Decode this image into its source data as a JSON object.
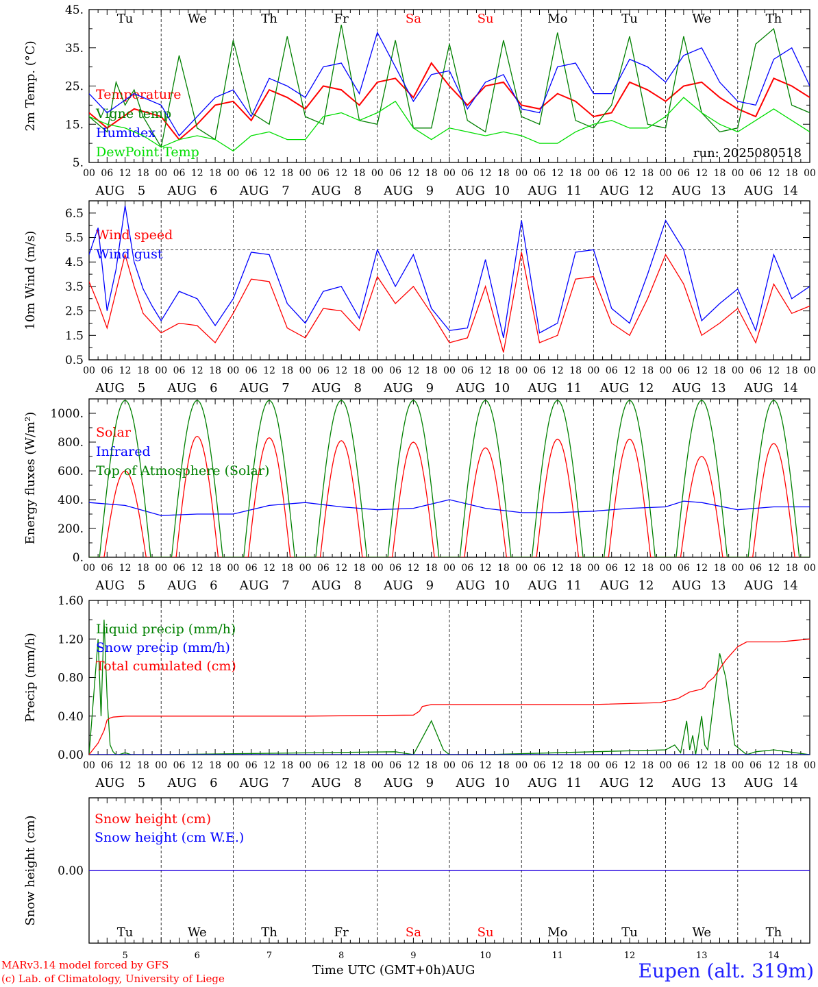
{
  "footer": {
    "credit_line1": "MARv3.14 model forced by GFS",
    "credit_line2": "(c) Lab. of Climatology, University of Liege",
    "x_axis_label": "Time UTC (GMT+0h)AUG",
    "station": "Eupen (alt. 319m)"
  },
  "colors": {
    "red": "#ff0000",
    "green": "#008000",
    "blue": "#0000ff",
    "lightgreen": "#00dd00",
    "weekend": "#ff0000",
    "axis": "#000000"
  },
  "time_axis": {
    "hour_ticks": [
      "00",
      "06",
      "12",
      "18"
    ],
    "final_tick": "00",
    "month": "AUG",
    "days": [
      "5",
      "6",
      "7",
      "8",
      "9",
      "10",
      "11",
      "12",
      "13",
      "14"
    ],
    "weekdays": [
      "Tu",
      "We",
      "Th",
      "Fr",
      "Sa",
      "Su",
      "Mo",
      "Tu",
      "We",
      "Th"
    ],
    "weekend_index": [
      4,
      5
    ]
  },
  "chart_data": [
    {
      "id": "temperature",
      "type": "line",
      "ylabel": "2m Temp. (°C)",
      "ylim": [
        5,
        45
      ],
      "yticks": [
        5,
        15,
        25,
        35,
        45
      ],
      "ytick_labels": [
        "5.",
        "15.",
        "25.",
        "35.",
        "45."
      ],
      "annotation": "run: 2025080518",
      "show_weekdays": true,
      "x_unit": "hours since Aug 5 00 UTC",
      "series": [
        {
          "name": "Temperature",
          "color": "#ff0000",
          "x": [
            0,
            6,
            15,
            24,
            30,
            36,
            42,
            48,
            54,
            60,
            66,
            72,
            78,
            84,
            90,
            96,
            102,
            108,
            114,
            120,
            126,
            132,
            138,
            144,
            150,
            156,
            162,
            168,
            174,
            180,
            186,
            192,
            198,
            204,
            210,
            216,
            222,
            228,
            234,
            240
          ],
          "y": [
            18,
            14,
            19,
            17,
            11,
            15,
            20,
            21,
            16,
            24,
            22,
            19,
            25,
            24,
            20,
            26,
            27,
            22,
            31,
            25,
            20,
            25,
            26,
            20,
            19,
            23,
            21,
            17,
            18,
            26,
            24,
            21,
            25,
            26,
            22,
            19,
            17,
            27,
            25,
            22
          ]
        },
        {
          "name": "Vigne temp",
          "color": "#008000",
          "x": [
            0,
            6,
            9,
            12,
            15,
            18,
            24,
            30,
            36,
            42,
            48,
            54,
            60,
            66,
            72,
            78,
            84,
            90,
            96,
            102,
            108,
            114,
            120,
            126,
            132,
            138,
            144,
            150,
            156,
            162,
            168,
            174,
            180,
            186,
            192,
            198,
            204,
            210,
            216,
            222,
            228,
            234,
            240
          ],
          "y": [
            17,
            13,
            26,
            20,
            24,
            17,
            9,
            33,
            14,
            11,
            37,
            18,
            15,
            38,
            17,
            15,
            41,
            16,
            15,
            37,
            14,
            14,
            36,
            16,
            13,
            37,
            17,
            15,
            39,
            16,
            14,
            20,
            38,
            15,
            14,
            38,
            18,
            13,
            14,
            36,
            40,
            20,
            18
          ]
        },
        {
          "name": "Humidex",
          "color": "#0000ff",
          "x": [
            0,
            6,
            15,
            24,
            30,
            36,
            42,
            48,
            54,
            60,
            66,
            72,
            78,
            84,
            90,
            96,
            102,
            108,
            114,
            120,
            126,
            132,
            138,
            144,
            150,
            156,
            162,
            168,
            174,
            180,
            186,
            192,
            198,
            204,
            210,
            216,
            222,
            228,
            234,
            240
          ],
          "y": [
            23,
            18,
            23,
            20,
            12,
            17,
            22,
            24,
            17,
            27,
            25,
            22,
            30,
            31,
            23,
            39,
            30,
            21,
            28,
            29,
            19,
            26,
            28,
            19,
            18,
            30,
            31,
            23,
            23,
            32,
            30,
            26,
            33,
            35,
            26,
            21,
            20,
            32,
            35,
            25
          ]
        },
        {
          "name": "DewPoint Temp",
          "color": "#00dd00",
          "x": [
            0,
            6,
            12,
            18,
            24,
            30,
            36,
            42,
            48,
            54,
            60,
            66,
            72,
            78,
            84,
            90,
            96,
            102,
            108,
            114,
            120,
            126,
            132,
            138,
            144,
            150,
            156,
            162,
            168,
            174,
            180,
            186,
            192,
            198,
            204,
            210,
            216,
            222,
            228,
            234,
            240
          ],
          "y": [
            17,
            15,
            14,
            12,
            9,
            11,
            12,
            11,
            8,
            12,
            13,
            11,
            11,
            17,
            18,
            16,
            18,
            21,
            14,
            11,
            14,
            13,
            12,
            13,
            12,
            10,
            10,
            13,
            15,
            16,
            14,
            14,
            17,
            22,
            18,
            15,
            13,
            16,
            19,
            16,
            13
          ]
        }
      ]
    },
    {
      "id": "wind",
      "type": "line",
      "ylabel": "10m Wind (m/s)",
      "ylim": [
        0.5,
        7
      ],
      "yticks": [
        0.5,
        1.5,
        2.5,
        3.5,
        4.5,
        5.5,
        6.5
      ],
      "ytick_labels": [
        "0.5",
        "1.5",
        "2.5",
        "3.5",
        "4.5",
        "5.5",
        "6.5"
      ],
      "reference_line": 5.0,
      "show_weekdays": false,
      "series": [
        {
          "name": "Wind speed",
          "color": "#ff0000",
          "x": [
            0,
            3,
            6,
            9,
            12,
            15,
            18,
            21,
            24,
            30,
            36,
            42,
            48,
            54,
            60,
            66,
            72,
            78,
            84,
            90,
            96,
            102,
            108,
            114,
            120,
            126,
            132,
            138,
            144,
            150,
            156,
            162,
            168,
            174,
            180,
            186,
            192,
            198,
            204,
            210,
            216,
            222,
            228,
            234,
            240
          ],
          "y": [
            3.7,
            2.8,
            1.8,
            3.3,
            4.8,
            3.5,
            2.4,
            2.0,
            1.6,
            2.0,
            1.9,
            1.2,
            2.4,
            3.8,
            3.7,
            1.8,
            1.4,
            2.6,
            2.5,
            1.7,
            3.9,
            2.8,
            3.5,
            2.4,
            1.2,
            1.4,
            3.5,
            0.8,
            4.9,
            1.2,
            1.5,
            3.8,
            3.9,
            2.0,
            1.5,
            3.0,
            4.8,
            3.6,
            1.5,
            2.0,
            2.6,
            1.2,
            3.6,
            2.4,
            2.7
          ]
        },
        {
          "name": "Wind gust",
          "color": "#0000ff",
          "x": [
            0,
            3,
            6,
            9,
            12,
            15,
            18,
            21,
            24,
            30,
            36,
            42,
            48,
            54,
            60,
            66,
            72,
            78,
            84,
            90,
            96,
            102,
            108,
            114,
            120,
            126,
            132,
            138,
            144,
            150,
            156,
            162,
            168,
            174,
            180,
            186,
            192,
            198,
            204,
            210,
            216,
            222,
            228,
            234,
            240
          ],
          "y": [
            4.8,
            5.9,
            2.5,
            4.2,
            6.8,
            4.5,
            3.4,
            2.7,
            2.1,
            3.3,
            3.0,
            1.9,
            3.0,
            4.9,
            4.8,
            2.8,
            2.0,
            3.3,
            3.5,
            2.2,
            5.0,
            3.5,
            4.8,
            2.6,
            1.7,
            1.8,
            4.6,
            1.4,
            6.2,
            1.6,
            2.0,
            4.9,
            5.0,
            2.6,
            2.0,
            4.0,
            6.2,
            5.0,
            2.1,
            2.8,
            3.4,
            1.7,
            4.8,
            3.0,
            3.5
          ]
        }
      ]
    },
    {
      "id": "energy",
      "type": "line",
      "ylabel": "Energy fluxes (W/m²)",
      "ylim": [
        0,
        1100
      ],
      "yticks": [
        0,
        200,
        400,
        600,
        800,
        1000
      ],
      "ytick_labels": [
        "0.",
        "200.",
        "400.",
        "600.",
        "800.",
        "1000."
      ],
      "show_weekdays": false,
      "toa_peak": 1090,
      "series": [
        {
          "name": "Solar",
          "color": "#ff0000",
          "daily_peaks": [
            600,
            840,
            830,
            810,
            800,
            760,
            820,
            820,
            700,
            790
          ]
        },
        {
          "name": "Infrared",
          "color": "#0000ff",
          "x": [
            0,
            12,
            24,
            36,
            48,
            60,
            72,
            84,
            96,
            108,
            120,
            132,
            144,
            156,
            168,
            180,
            192,
            198,
            204,
            216,
            228,
            240
          ],
          "y": [
            380,
            360,
            290,
            300,
            300,
            360,
            380,
            350,
            330,
            340,
            400,
            340,
            310,
            310,
            320,
            340,
            350,
            390,
            380,
            330,
            350,
            350
          ]
        },
        {
          "name": "Top of Atmosphere (Solar)",
          "color": "#008000"
        }
      ]
    },
    {
      "id": "precip",
      "type": "line",
      "ylabel": "Precip (mm/h)",
      "ylim": [
        0,
        1.6
      ],
      "yticks": [
        0,
        0.4,
        0.8,
        1.2,
        1.6
      ],
      "ytick_labels": [
        "0.00",
        "0.40",
        "0.80",
        "1.20",
        "1.60"
      ],
      "show_weekdays": false,
      "series": [
        {
          "name": "Liquid precip (mm/h)",
          "color": "#008000",
          "x": [
            0,
            2,
            3,
            4,
            5,
            6,
            7,
            8,
            9,
            10,
            12,
            14,
            24,
            102,
            108,
            114,
            118,
            120,
            132,
            192,
            195,
            197,
            199,
            200,
            201,
            202,
            204,
            205,
            206,
            210,
            212,
            215,
            219,
            222,
            228,
            240
          ],
          "y": [
            0,
            0.8,
            1.2,
            0.4,
            1.4,
            0.6,
            0.1,
            0.03,
            0,
            0,
            0.02,
            0,
            0,
            0.03,
            0,
            0.35,
            0.05,
            0,
            0,
            0.05,
            0.1,
            0.02,
            0.35,
            0.05,
            0.2,
            0,
            0.4,
            0.1,
            0.05,
            1.05,
            0.8,
            0.1,
            0,
            0.03,
            0.05,
            0
          ]
        },
        {
          "name": "Snow precip (mm/h)",
          "color": "#0000ff",
          "x": [
            0,
            240
          ],
          "y": [
            0,
            0
          ]
        },
        {
          "name": "Total cumulated (cm)",
          "color": "#ff0000",
          "x": [
            0,
            3,
            5,
            6,
            7,
            8,
            12,
            24,
            60,
            72,
            108,
            110,
            111,
            114,
            120,
            132,
            168,
            190,
            196,
            200,
            204,
            205,
            206,
            208,
            212,
            214,
            216,
            219,
            220,
            222,
            230,
            240
          ],
          "y": [
            0,
            0.12,
            0.25,
            0.36,
            0.38,
            0.39,
            0.4,
            0.4,
            0.4,
            0.4,
            0.41,
            0.45,
            0.5,
            0.52,
            0.52,
            0.52,
            0.52,
            0.54,
            0.58,
            0.65,
            0.68,
            0.7,
            0.75,
            0.8,
            0.98,
            1.05,
            1.12,
            1.17,
            1.17,
            1.17,
            1.17,
            1.2
          ]
        }
      ]
    },
    {
      "id": "snow",
      "type": "line",
      "ylabel": "Snow height (cm)",
      "ytick_labels": [
        "0.00"
      ],
      "show_weekdays": "bottom",
      "series": [
        {
          "name": "Snow height (cm)",
          "color": "#ff0000",
          "x": [
            0,
            240
          ],
          "y": [
            0,
            0
          ]
        },
        {
          "name": "Snow height (cm W.E.)",
          "color": "#0000ff",
          "x": [
            0,
            240
          ],
          "y": [
            0,
            0
          ]
        }
      ]
    }
  ]
}
